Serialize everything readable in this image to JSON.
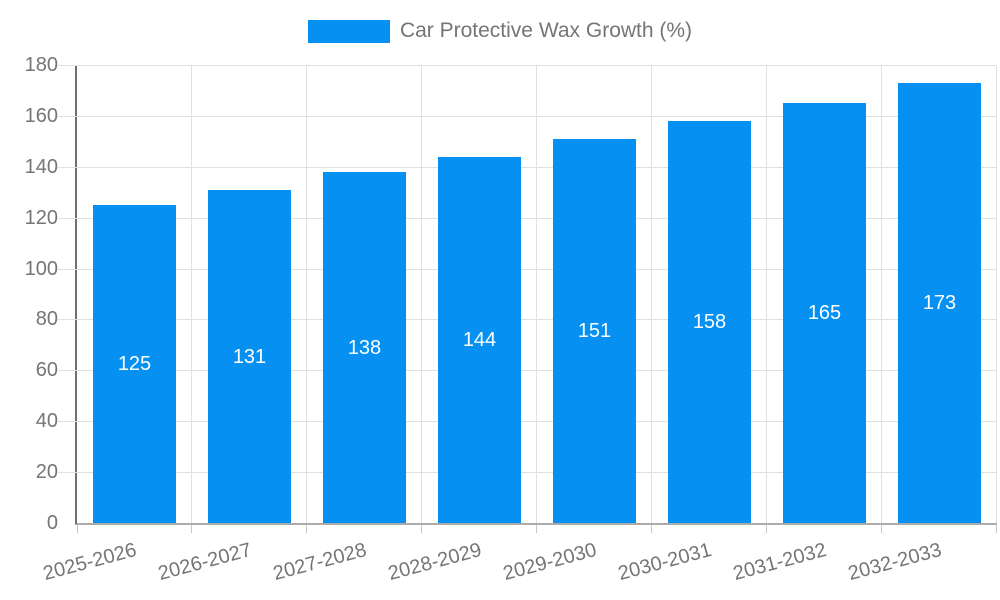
{
  "legend": {
    "label": "Car Protective Wax Growth (%)"
  },
  "chart_data": {
    "type": "bar",
    "title": "Car Protective Wax Growth (%)",
    "categories": [
      "2025-2026",
      "2026-2027",
      "2027-2028",
      "2028-2029",
      "2029-2030",
      "2030-2031",
      "2031-2032",
      "2032-2033"
    ],
    "values": [
      125,
      131,
      138,
      144,
      151,
      158,
      165,
      173
    ],
    "xlabel": "",
    "ylabel": "",
    "ylim": [
      0,
      180
    ],
    "yticks": [
      0,
      20,
      40,
      60,
      80,
      100,
      120,
      140,
      160,
      180
    ],
    "grid": true,
    "legend_position": "top-center",
    "bar_labels_inside": true,
    "colors": {
      "bar": "#0690f2",
      "bar_label": "#ffffff",
      "axis_text": "#757575",
      "legend_text": "#757575",
      "gridline": "#e0e0e0",
      "y_axis_line": "#6f6f6f",
      "x_axis_line": "#ababab",
      "background": "#ffffff"
    }
  }
}
